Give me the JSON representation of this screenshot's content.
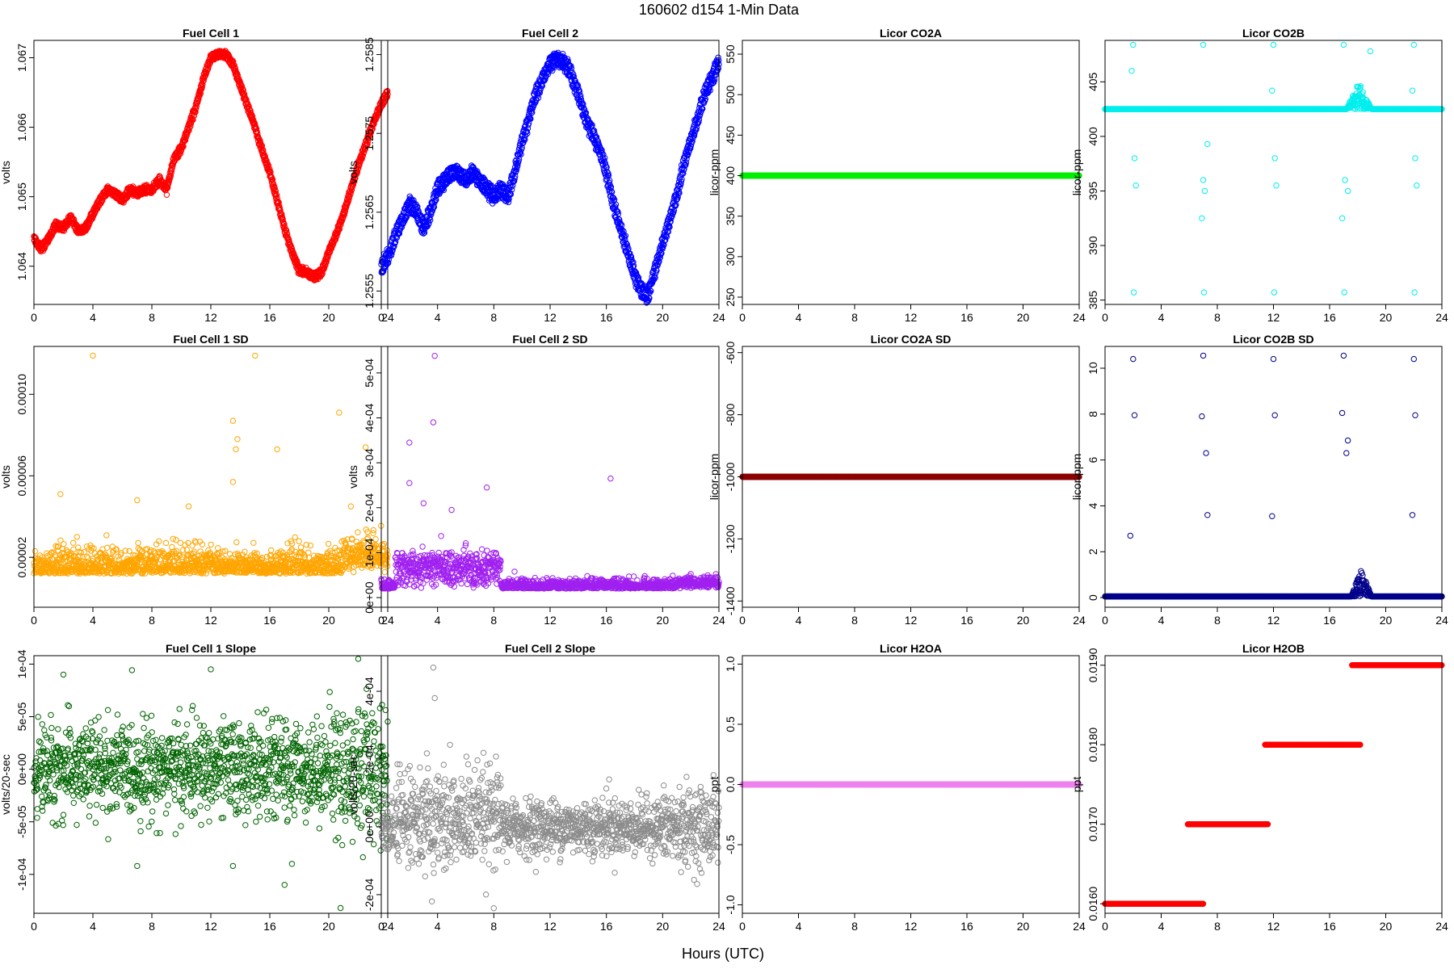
{
  "figure": {
    "title": "160602   d154   1-Min Data",
    "xlabel": "Hours (UTC)"
  },
  "chart_data": [
    {
      "type": "scatter",
      "title": "Fuel Cell 1",
      "ylabel": "volts",
      "color": "#ff0000",
      "ylim": [
        1.06345,
        1.06725
      ],
      "yticks": [
        "1.064",
        "1.065",
        "1.066",
        "1.067"
      ],
      "yticks_v": [
        1.064,
        1.065,
        1.066,
        1.067
      ],
      "xlim": [
        0,
        24
      ],
      "xticks": [
        0,
        4,
        8,
        12,
        16,
        20,
        24
      ],
      "kind": "curve",
      "x": [
        0,
        0.5,
        1,
        1.5,
        2,
        2.5,
        3,
        3.5,
        4,
        4.5,
        5,
        5.5,
        6,
        6.5,
        7,
        7.5,
        8,
        8.5,
        9,
        9.5,
        10,
        10.5,
        11,
        11.5,
        12,
        12.5,
        13,
        13.5,
        14,
        14.5,
        15,
        15.5,
        16,
        16.5,
        17,
        17.5,
        18,
        18.5,
        19,
        19.5,
        20,
        20.5,
        21,
        21.5,
        22,
        22.5,
        23,
        23.5,
        24
      ],
      "y": [
        1.0644,
        1.06425,
        1.0644,
        1.0646,
        1.06455,
        1.0647,
        1.0645,
        1.06455,
        1.06475,
        1.06495,
        1.0651,
        1.06505,
        1.06495,
        1.0651,
        1.06505,
        1.0651,
        1.0651,
        1.06525,
        1.0651,
        1.06555,
        1.0657,
        1.066,
        1.0663,
        1.0667,
        1.067,
        1.06705,
        1.06705,
        1.0669,
        1.0666,
        1.0663,
        1.066,
        1.06565,
        1.06535,
        1.06495,
        1.06455,
        1.0642,
        1.06395,
        1.0639,
        1.06385,
        1.0639,
        1.0642,
        1.06445,
        1.06475,
        1.0651,
        1.06545,
        1.06575,
        1.06605,
        1.0663,
        1.0665
      ],
      "band": 7e-05
    },
    {
      "type": "scatter",
      "title": "Fuel Cell 2",
      "ylabel": "volts",
      "color": "#0000ff",
      "ylim": [
        1.25533,
        1.25868
      ],
      "yticks": [
        "1.2555",
        "1.2565",
        "1.2575",
        "1.2585"
      ],
      "yticks_v": [
        1.2555,
        1.2565,
        1.2575,
        1.2585
      ],
      "xlim": [
        0,
        24
      ],
      "xticks": [
        0,
        4,
        8,
        12,
        16,
        20,
        24
      ],
      "kind": "curve",
      "x": [
        0,
        0.5,
        1,
        1.5,
        2,
        2.5,
        3,
        3.5,
        4,
        4.5,
        5,
        5.5,
        6,
        6.5,
        7,
        7.5,
        8,
        8.5,
        9,
        9.5,
        10,
        10.5,
        11,
        11.5,
        12,
        12.5,
        13,
        13.5,
        14,
        14.5,
        15,
        15.5,
        16,
        16.5,
        17,
        17.5,
        18,
        18.5,
        19,
        19.5,
        20,
        20.5,
        21,
        21.5,
        22,
        22.5,
        23,
        23.5,
        24
      ],
      "y": [
        1.2558,
        1.25595,
        1.2562,
        1.2564,
        1.2566,
        1.2565,
        1.2563,
        1.2565,
        1.2568,
        1.2569,
        1.257,
        1.257,
        1.2569,
        1.257,
        1.2569,
        1.2568,
        1.2567,
        1.2568,
        1.2567,
        1.257,
        1.2574,
        1.2577,
        1.258,
        1.2582,
        1.2584,
        1.25845,
        1.2584,
        1.25825,
        1.258,
        1.2577,
        1.2575,
        1.2573,
        1.257,
        1.2566,
        1.2563,
        1.256,
        1.2557,
        1.2555,
        1.25545,
        1.2558,
        1.2561,
        1.2564,
        1.2567,
        1.2571,
        1.2574,
        1.2577,
        1.258,
        1.2582,
        1.2584
      ],
      "band": 0.00012
    },
    {
      "type": "scatter",
      "title": "Licor CO2A",
      "ylabel": "licor-ppm",
      "color": "#00ee00",
      "ylim": [
        241,
        567
      ],
      "yticks": [
        "250",
        "300",
        "350",
        "400",
        "450",
        "500",
        "550"
      ],
      "yticks_v": [
        250,
        300,
        350,
        400,
        450,
        500,
        550
      ],
      "xlim": [
        0,
        24
      ],
      "xticks": [
        0,
        4,
        8,
        12,
        16,
        20,
        24
      ],
      "kind": "const",
      "value": 400
    },
    {
      "type": "scatter",
      "title": "Licor CO2B",
      "ylabel": "licor-ppm",
      "color": "#00eeee",
      "ylim": [
        384.6,
        408.8
      ],
      "yticks": [
        "385",
        "390",
        "395",
        "400",
        "405"
      ],
      "yticks_v": [
        385,
        390,
        395,
        400,
        405
      ],
      "xlim": [
        0,
        24
      ],
      "xticks": [
        0,
        4,
        8,
        12,
        16,
        20,
        24
      ],
      "kind": "const",
      "value": 402.5,
      "bump": [
        17.2,
        19,
        405
      ],
      "outliers": [
        [
          2,
          408.4
        ],
        [
          2.05,
          385.7
        ],
        [
          1.9,
          406
        ],
        [
          2.1,
          398
        ],
        [
          2.2,
          395.5
        ],
        [
          7,
          408.4
        ],
        [
          7.05,
          385.7
        ],
        [
          6.9,
          392.5
        ],
        [
          7,
          396
        ],
        [
          7.1,
          395
        ],
        [
          7.3,
          399.3
        ],
        [
          12,
          408.4
        ],
        [
          12.05,
          385.7
        ],
        [
          11.9,
          404.2
        ],
        [
          12.1,
          398
        ],
        [
          12.2,
          395.5
        ],
        [
          17,
          408.4
        ],
        [
          17.05,
          385.7
        ],
        [
          16.9,
          392.5
        ],
        [
          17.1,
          396
        ],
        [
          17.3,
          395
        ],
        [
          22,
          408.4
        ],
        [
          22.05,
          385.7
        ],
        [
          21.9,
          404.2
        ],
        [
          22.1,
          398
        ],
        [
          22.2,
          395.5
        ],
        [
          18.9,
          407.8
        ]
      ]
    },
    {
      "type": "scatter",
      "title": "Fuel Cell 1 SD",
      "ylabel": "volts",
      "color": "#ffa500",
      "ylim": [
        -4.5e-06,
        0.0001235
      ],
      "yticks": [
        "0.00002",
        "0.00006",
        "0.00010"
      ],
      "yticks_v": [
        2e-05,
        6e-05,
        0.0001
      ],
      "xlim": [
        0,
        24
      ],
      "xticks": [
        0,
        4,
        8,
        12,
        16,
        20,
        24
      ],
      "kind": "noise",
      "base": 1.2e-05,
      "spread": 6e-06,
      "outliers": [
        [
          4,
          0.000119
        ],
        [
          15,
          0.000119
        ],
        [
          13.5,
          8.7e-05
        ],
        [
          13.8,
          7.8e-05
        ],
        [
          13.7,
          7.3e-05
        ],
        [
          20.7,
          9.1e-05
        ],
        [
          22.5,
          7.4e-05
        ],
        [
          16.5,
          7.3e-05
        ],
        [
          1.8,
          5.1e-05
        ],
        [
          7,
          4.8e-05
        ],
        [
          13.5,
          5.7e-05
        ],
        [
          21.5,
          4.5e-05
        ],
        [
          10.5,
          4.5e-05
        ]
      ]
    },
    {
      "type": "scatter",
      "title": "Fuel Cell 2 SD",
      "ylabel": "volts",
      "color": "#a020f0",
      "ylim": [
        -2.15e-05,
        0.000559
      ],
      "yticks": [
        "0e+00",
        "1e-04",
        "2e-04",
        "3e-04",
        "4e-04",
        "5e-04"
      ],
      "yticks_v": [
        0,
        0.0001,
        0.0002,
        0.0003,
        0.0004,
        0.0005
      ],
      "xlim": [
        0,
        24
      ],
      "xticks": [
        0,
        4,
        8,
        12,
        16,
        20,
        24
      ],
      "kind": "noise",
      "base": 2e-05,
      "spread": 1e-05,
      "hump": [
        1,
        8.5,
        6e-05
      ],
      "outliers": [
        [
          3.8,
          0.000538
        ],
        [
          3.7,
          0.00039
        ],
        [
          2,
          0.000345
        ],
        [
          2,
          0.000255
        ],
        [
          7.5,
          0.000245
        ],
        [
          16.3,
          0.000265
        ],
        [
          3,
          0.00021
        ],
        [
          5,
          0.000195
        ]
      ]
    },
    {
      "type": "scatter",
      "title": "Licor CO2A SD",
      "ylabel": "licor-ppm",
      "color": "#8b0000",
      "ylim": [
        -1420,
        -580
      ],
      "yticks": [
        "-1400",
        "-1200",
        "-1000",
        "-800",
        "-600"
      ],
      "yticks_v": [
        -1400,
        -1200,
        -1000,
        -800,
        -600
      ],
      "xlim": [
        0,
        24
      ],
      "xticks": [
        0,
        4,
        8,
        12,
        16,
        20,
        24
      ],
      "kind": "const",
      "value": -1000
    },
    {
      "type": "scatter",
      "title": "Licor CO2B SD",
      "ylabel": "licor-ppm",
      "color": "#00008b",
      "ylim": [
        -0.42,
        10.95
      ],
      "yticks": [
        "0",
        "2",
        "4",
        "6",
        "8",
        "10"
      ],
      "yticks_v": [
        0,
        2,
        4,
        6,
        8,
        10
      ],
      "xlim": [
        0,
        24
      ],
      "xticks": [
        0,
        4,
        8,
        12,
        16,
        20,
        24
      ],
      "kind": "const",
      "value": 0.05,
      "bump": [
        17.5,
        19,
        1.2
      ],
      "outliers": [
        [
          2,
          10.4
        ],
        [
          2.1,
          7.95
        ],
        [
          1.8,
          2.7
        ],
        [
          7,
          10.55
        ],
        [
          6.9,
          7.9
        ],
        [
          7.2,
          6.3
        ],
        [
          7.3,
          3.6
        ],
        [
          12,
          10.4
        ],
        [
          12.1,
          7.95
        ],
        [
          11.9,
          3.55
        ],
        [
          17,
          10.55
        ],
        [
          16.9,
          8.05
        ],
        [
          17.3,
          6.85
        ],
        [
          17.2,
          6.3
        ],
        [
          22,
          10.4
        ],
        [
          22.1,
          7.95
        ],
        [
          21.9,
          3.6
        ]
      ]
    },
    {
      "type": "scatter",
      "title": "Fuel Cell 1 Slope",
      "ylabel": "volts/20-sec",
      "color": "#006400",
      "ylim": [
        -0.000137,
        0.000108
      ],
      "yticks": [
        "-1e-04",
        "-5e-05",
        "0e+00",
        "5e-05",
        "1e-04"
      ],
      "yticks_v": [
        -0.0001,
        -5e-05,
        0,
        5e-05,
        0.0001
      ],
      "xlim": [
        0,
        24
      ],
      "xticks": [
        0,
        4,
        8,
        12,
        16,
        20,
        24
      ],
      "kind": "noise",
      "base": 0.0,
      "spread": 2.2e-05,
      "outliers": [
        [
          22,
          0.000105
        ],
        [
          12,
          9.5e-05
        ],
        [
          2,
          9e-05
        ],
        [
          7,
          -9.2e-05
        ],
        [
          13.5,
          -9.2e-05
        ],
        [
          17,
          -0.00011
        ],
        [
          20.8,
          -0.000132
        ],
        [
          17.5,
          -9e-05
        ]
      ]
    },
    {
      "type": "scatter",
      "title": "Fuel Cell 2 Slope",
      "ylabel": "volts/20-sec",
      "color": "#8c8c8c",
      "ylim": [
        -0.000255,
        0.000505
      ],
      "yticks": [
        "-2e-04",
        "0e+00",
        "2e-04",
        "4e-04"
      ],
      "yticks_v": [
        -0.0002,
        0,
        0.0002,
        0.0004
      ],
      "xlim": [
        0,
        24
      ],
      "xticks": [
        0,
        4,
        8,
        12,
        16,
        20,
        24
      ],
      "kind": "noise",
      "base": 0.0,
      "spread": 4e-05,
      "hump": [
        1,
        8.5,
        4e-05
      ],
      "outliers": [
        [
          3.7,
          0.00047
        ],
        [
          3.8,
          0.00038
        ],
        [
          3.6,
          -0.00022
        ],
        [
          8,
          -0.00024
        ],
        [
          16.2,
          0.00014
        ]
      ]
    },
    {
      "type": "scatter",
      "title": "Licor H2OA",
      "ylabel": "ppt",
      "color": "#ee82ee",
      "ylim": [
        -1.07,
        1.07
      ],
      "yticks": [
        "-1.0",
        "-0.5",
        "0.0",
        "0.5",
        "1.0"
      ],
      "yticks_v": [
        -1,
        -0.5,
        0,
        0.5,
        1
      ],
      "xlim": [
        0,
        24
      ],
      "xticks": [
        0,
        4,
        8,
        12,
        16,
        20,
        24
      ],
      "kind": "const",
      "value": 0.0
    },
    {
      "type": "scatter",
      "title": "Licor H2OB",
      "ylabel": "ppt",
      "color": "#ff0000",
      "ylim": [
        0.01588,
        0.01912
      ],
      "yticks": [
        "0.0160",
        "0.0170",
        "0.0180",
        "0.0190"
      ],
      "yticks_v": [
        0.016,
        0.017,
        0.018,
        0.019
      ],
      "xlim": [
        0,
        24
      ],
      "xticks": [
        0,
        4,
        8,
        12,
        16,
        20,
        24
      ],
      "kind": "steps",
      "steps": [
        [
          0,
          7,
          0.016
        ],
        [
          5.9,
          11.6,
          0.017
        ],
        [
          11.4,
          18.2,
          0.018
        ],
        [
          17.6,
          24,
          0.019
        ]
      ]
    }
  ]
}
